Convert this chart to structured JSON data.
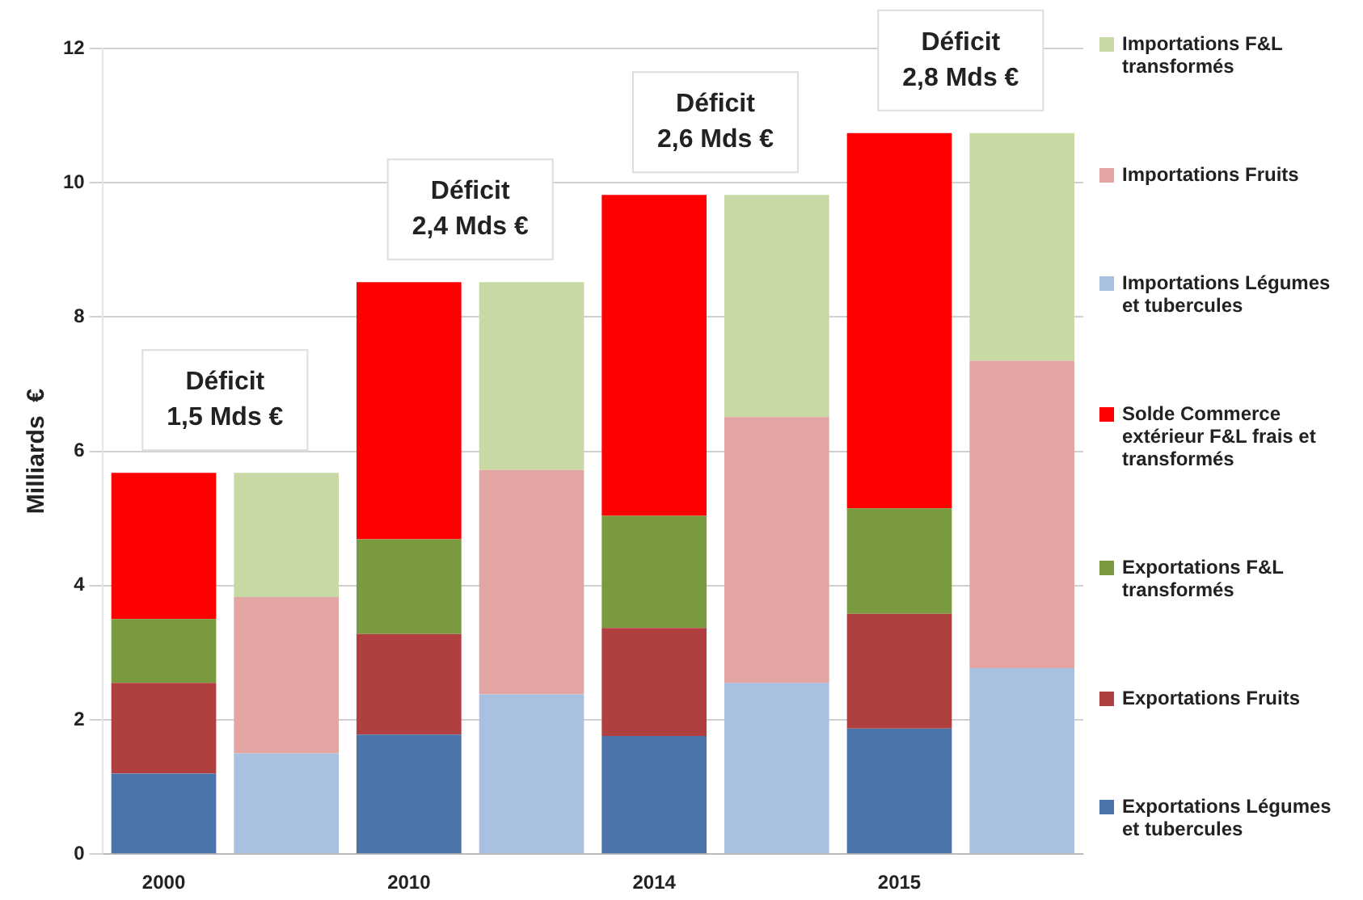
{
  "chart_data": {
    "type": "bar",
    "stacked": true,
    "ylabel": "Milliards  €",
    "categories": [
      "2000",
      null,
      "2010",
      null,
      "2014",
      null,
      "2015",
      null
    ],
    "ylim": [
      0,
      12
    ],
    "yticks": [
      0,
      2,
      4,
      6,
      8,
      10,
      12
    ],
    "grid": "y",
    "legend": "right",
    "series": [
      {
        "name": "Exportations Légumes et tubercules",
        "color": "#4a74aa",
        "values": [
          1.2,
          null,
          1.78,
          null,
          1.76,
          null,
          1.87,
          null
        ]
      },
      {
        "name": "Exportations Fruits",
        "color": "#b0403f",
        "values": [
          1.35,
          null,
          1.5,
          null,
          1.61,
          null,
          1.71,
          null
        ]
      },
      {
        "name": "Exportations F&L transformés",
        "color": "#7a9a40",
        "values": [
          0.95,
          null,
          1.41,
          null,
          1.67,
          null,
          1.57,
          null
        ]
      },
      {
        "name": "Solde Commerce extérieur F&L frais et transformés",
        "color": "#ff0000",
        "values": [
          2.18,
          null,
          3.83,
          null,
          4.78,
          null,
          5.59,
          null
        ]
      },
      {
        "name": "Importations Légumes et tubercules",
        "color": "#a9c1e0",
        "values": [
          null,
          1.5,
          null,
          2.38,
          null,
          2.55,
          null,
          2.77
        ]
      },
      {
        "name": "Importations Fruits",
        "color": "#e2a5a4",
        "values": [
          null,
          2.33,
          null,
          3.34,
          null,
          3.96,
          null,
          4.58
        ]
      },
      {
        "name": "Importations F&L transformés",
        "color": "#c9d9a4",
        "values": [
          null,
          1.85,
          null,
          2.8,
          null,
          3.31,
          null,
          3.39
        ]
      }
    ],
    "annotations": [
      "Déficit\n1,5 Mds €",
      "Déficit\n2,4 Mds €",
      "Déficit\n2,6 Mds €",
      "Déficit\n2,8 Mds €"
    ]
  }
}
